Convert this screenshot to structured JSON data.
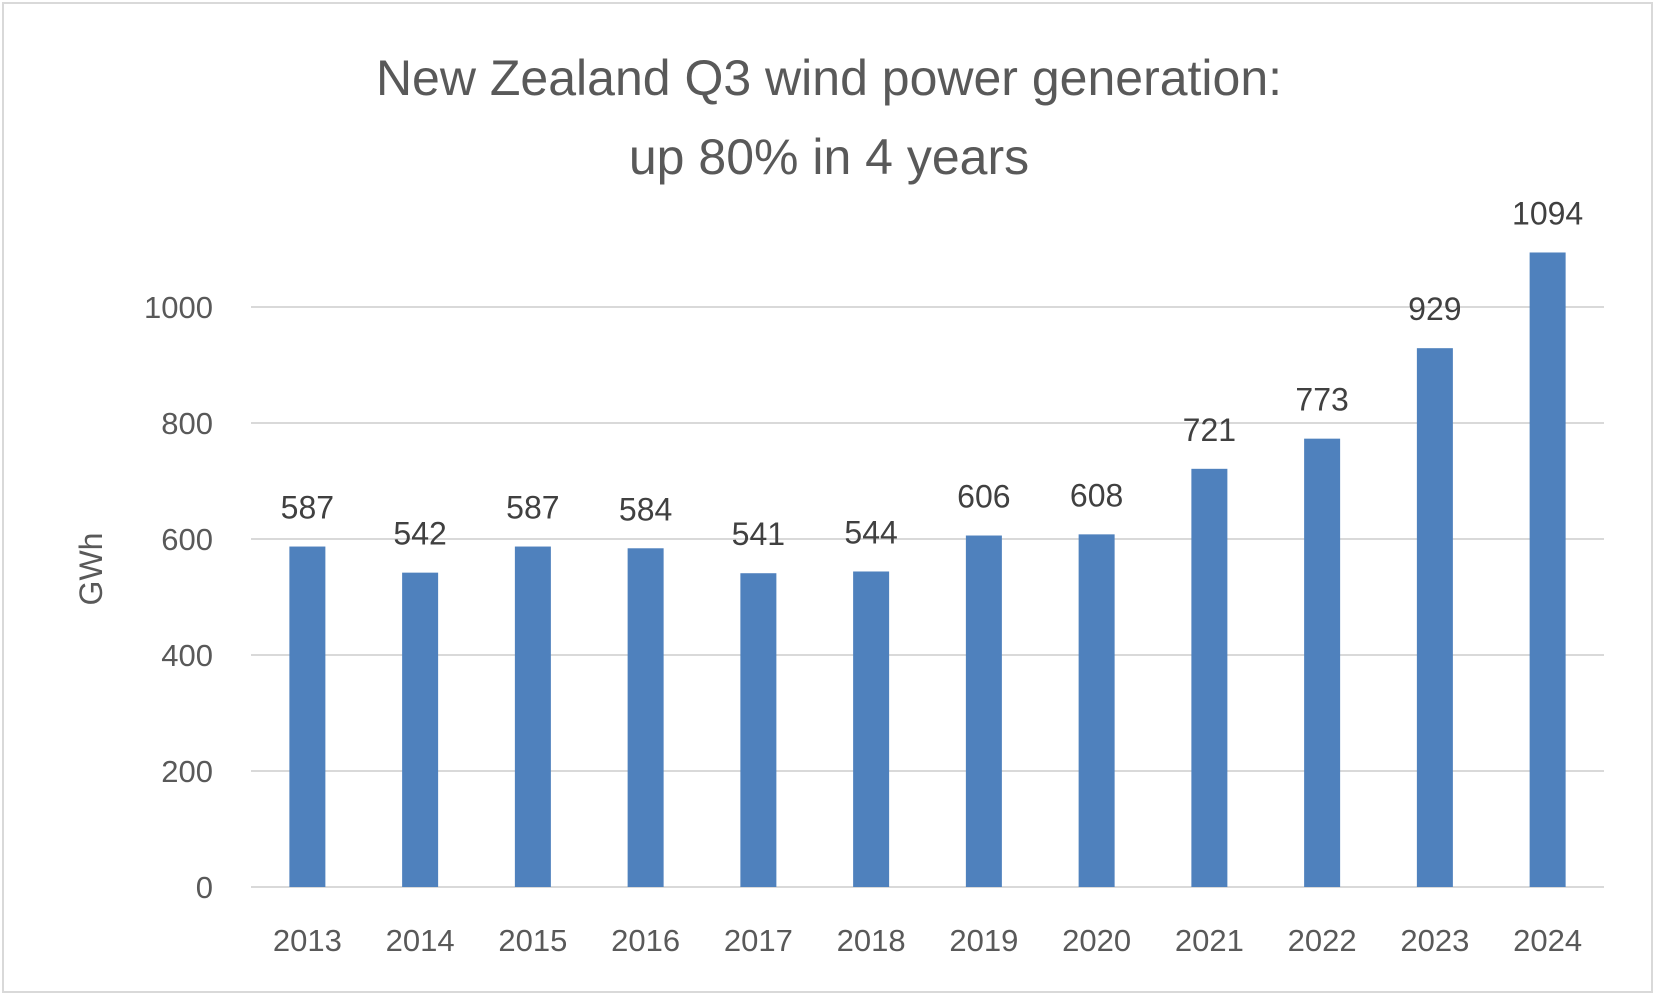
{
  "chart_data": {
    "type": "bar",
    "title_lines": [
      "New Zealand Q3 wind power generation:",
      "up 80% in 4 years"
    ],
    "xlabel": "",
    "ylabel": "GWh",
    "categories": [
      "2013",
      "2014",
      "2015",
      "2016",
      "2017",
      "2018",
      "2019",
      "2020",
      "2021",
      "2022",
      "2023",
      "2024"
    ],
    "values": [
      587,
      542,
      587,
      584,
      541,
      544,
      606,
      608,
      721,
      773,
      929,
      1094
    ],
    "data_labels": [
      "587",
      "542",
      "587",
      "584",
      "541",
      "544",
      "606",
      "608",
      "721",
      "773",
      "929",
      "1094"
    ],
    "yticks": [
      0,
      200,
      400,
      600,
      800,
      1000
    ],
    "ylim": [
      0,
      1000
    ],
    "grid": true,
    "legend": "none",
    "colors": {
      "bar": "#4f81bd",
      "grid": "#d9d9d9",
      "text": "#595959",
      "label": "#404040"
    }
  }
}
